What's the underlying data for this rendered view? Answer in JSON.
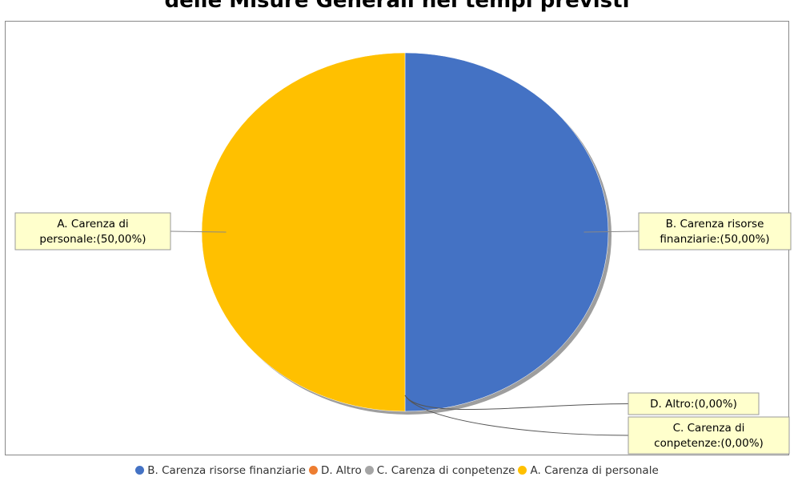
{
  "chart_data": {
    "type": "pie",
    "title": "delle Misure Generali nei tempi previsti",
    "categories": [
      "B. Carenza risorse finanziarie",
      "D. Altro",
      "C. Carenza di conpetenze",
      "A. Carenza di personale"
    ],
    "values": [
      50.0,
      0.0,
      0.0,
      50.0
    ],
    "slice_labels": [
      [
        "B. Carenza risorse",
        "finanziarie:(50,00%)"
      ],
      [
        "D. Altro:(0,00%)"
      ],
      [
        "C. Carenza di",
        "conpetenze:(0,00%)"
      ],
      [
        "A. Carenza di",
        "personale:(50,00%)"
      ]
    ],
    "colors": [
      "#4472c4",
      "#ed7d31",
      "#a5a5a5",
      "#ffc000"
    ],
    "legend_position": "bottom"
  }
}
